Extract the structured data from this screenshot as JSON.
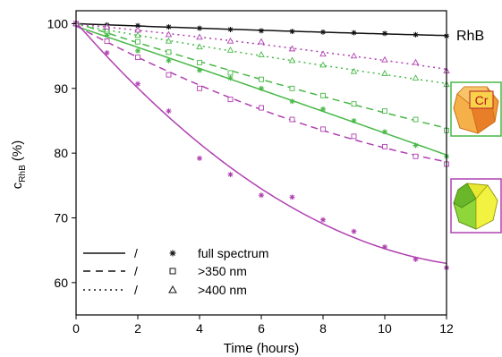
{
  "chart_data": {
    "type": "scatter",
    "title": "",
    "xlabel": "Time (hours)",
    "ylabel_main": "c",
    "ylabel_sub": "RhB",
    "ylabel_unit": " (%)",
    "xlim": [
      0,
      12
    ],
    "ylim": [
      55,
      102
    ],
    "xticks": [
      0,
      2,
      4,
      6,
      8,
      10,
      12
    ],
    "yticks": [
      60,
      70,
      80,
      90,
      100
    ],
    "grid": false,
    "legend_placement": "bottom-left",
    "legend": [
      {
        "line": "solid",
        "separator": "/",
        "marker": "asterisk",
        "label": "full spectrum"
      },
      {
        "line": "dashed",
        "separator": "/",
        "marker": "square",
        "label": ">350 nm"
      },
      {
        "line": "dotted",
        "separator": "/",
        "marker": "triangle",
        "label": ">400 nm"
      }
    ],
    "annotations": {
      "rhb_label": "RhB",
      "cr_label": "Cr"
    },
    "colors": {
      "rhb": "#111111",
      "green": "#48b848",
      "purple": "#b040b0"
    },
    "series": [
      {
        "group": "rhb",
        "line": "solid",
        "marker": "asterisk",
        "x": [
          0,
          1,
          2,
          3,
          4,
          5,
          6,
          7,
          8,
          9,
          10,
          11,
          12
        ],
        "y": [
          100,
          99.8,
          99.7,
          99.5,
          99.3,
          99.1,
          98.9,
          98.8,
          98.7,
          98.6,
          98.5,
          98.3,
          98.1
        ]
      },
      {
        "group": "green",
        "line": "solid",
        "marker": "asterisk",
        "x": [
          0,
          1,
          2,
          3,
          4,
          5,
          6,
          7,
          8,
          9,
          10,
          11,
          12
        ],
        "y": [
          100,
          98.2,
          95.8,
          94.3,
          92.8,
          91.6,
          90.0,
          88.0,
          86.8,
          85.0,
          83.3,
          81.2,
          79.5
        ]
      },
      {
        "group": "green",
        "line": "dashed",
        "marker": "square",
        "x": [
          0,
          1,
          2,
          3,
          4,
          5,
          6,
          7,
          8,
          9,
          10,
          11,
          12
        ],
        "y": [
          100,
          98.8,
          97.2,
          95.6,
          94.0,
          92.4,
          91.4,
          90.0,
          88.9,
          87.6,
          86.5,
          85.2,
          83.5
        ]
      },
      {
        "group": "green",
        "line": "dotted",
        "marker": "triangle",
        "x": [
          0,
          1,
          2,
          3,
          4,
          5,
          6,
          7,
          8,
          9,
          10,
          11,
          12
        ],
        "y": [
          100,
          99.0,
          98.2,
          97.3,
          96.4,
          95.9,
          95.2,
          94.3,
          93.6,
          92.6,
          92.3,
          91.6,
          90.6
        ]
      },
      {
        "group": "purple",
        "line": "solid",
        "marker": "asterisk",
        "x": [
          0,
          1,
          2,
          3,
          4,
          5,
          6,
          7,
          8,
          9,
          10,
          11,
          12
        ],
        "y": [
          100,
          95.5,
          90.7,
          86.5,
          79.2,
          76.7,
          73.5,
          73.2,
          69.7,
          67.9,
          65.5,
          63.6,
          62.3
        ]
      },
      {
        "group": "purple",
        "line": "dashed",
        "marker": "square",
        "x": [
          0,
          1,
          2,
          3,
          4,
          5,
          6,
          7,
          8,
          9,
          10,
          11,
          12
        ],
        "y": [
          100,
          97.3,
          94.8,
          92.1,
          90.0,
          88.3,
          87.0,
          85.2,
          83.7,
          82.6,
          81.0,
          79.5,
          78.3
        ]
      },
      {
        "group": "purple",
        "line": "dotted",
        "marker": "triangle",
        "x": [
          0,
          1,
          2,
          3,
          4,
          5,
          6,
          7,
          8,
          9,
          10,
          11,
          12
        ],
        "y": [
          100,
          99.5,
          99.0,
          98.3,
          97.9,
          97.3,
          97.2,
          96.1,
          95.3,
          95.0,
          94.4,
          94.0,
          92.7
        ]
      }
    ]
  }
}
